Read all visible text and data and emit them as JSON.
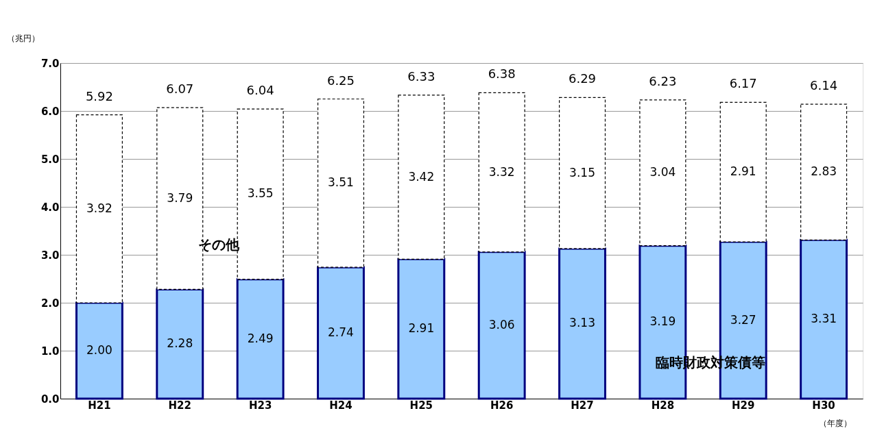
{
  "chart_data": {
    "type": "bar",
    "stacked": true,
    "ylabel": "（兆円）",
    "xlabel": "（年度）",
    "categories": [
      "H21",
      "H22",
      "H23",
      "H24",
      "H25",
      "H26",
      "H27",
      "H28",
      "H29",
      "H30"
    ],
    "series": [
      {
        "name": "臨時財政対策債等",
        "color": "#99ccff",
        "values": [
          2.0,
          2.28,
          2.49,
          2.74,
          2.91,
          3.06,
          3.13,
          3.19,
          3.27,
          3.31
        ],
        "value_labels": [
          "2.00",
          "2.28",
          "2.49",
          "2.74",
          "2.91",
          "3.06",
          "3.13",
          "3.19",
          "3.27",
          "3.31"
        ]
      },
      {
        "name": "その他",
        "color": "#ffffff",
        "line_style": "dashed",
        "values": [
          3.92,
          3.79,
          3.55,
          3.51,
          3.42,
          3.32,
          3.15,
          3.04,
          2.91,
          2.83
        ],
        "value_labels": [
          "3.92",
          "3.79",
          "3.55",
          "3.51",
          "3.42",
          "3.32",
          "3.15",
          "3.04",
          "2.91",
          "2.83"
        ]
      }
    ],
    "totals": [
      "5.92",
      "6.07",
      "6.04",
      "6.25",
      "6.33",
      "6.38",
      "6.29",
      "6.23",
      "6.17",
      "6.14"
    ],
    "ylim": [
      0,
      7
    ],
    "yticks": [
      {
        "value": 0,
        "label": "0.0"
      },
      {
        "value": 1,
        "label": "1.0"
      },
      {
        "value": 2,
        "label": "2.0"
      },
      {
        "value": 3,
        "label": "3.0"
      },
      {
        "value": 4,
        "label": "4.0"
      },
      {
        "value": 5,
        "label": "5.0"
      },
      {
        "value": 6,
        "label": "6.0"
      },
      {
        "value": 7,
        "label": "7.0"
      }
    ],
    "grid": "y"
  }
}
